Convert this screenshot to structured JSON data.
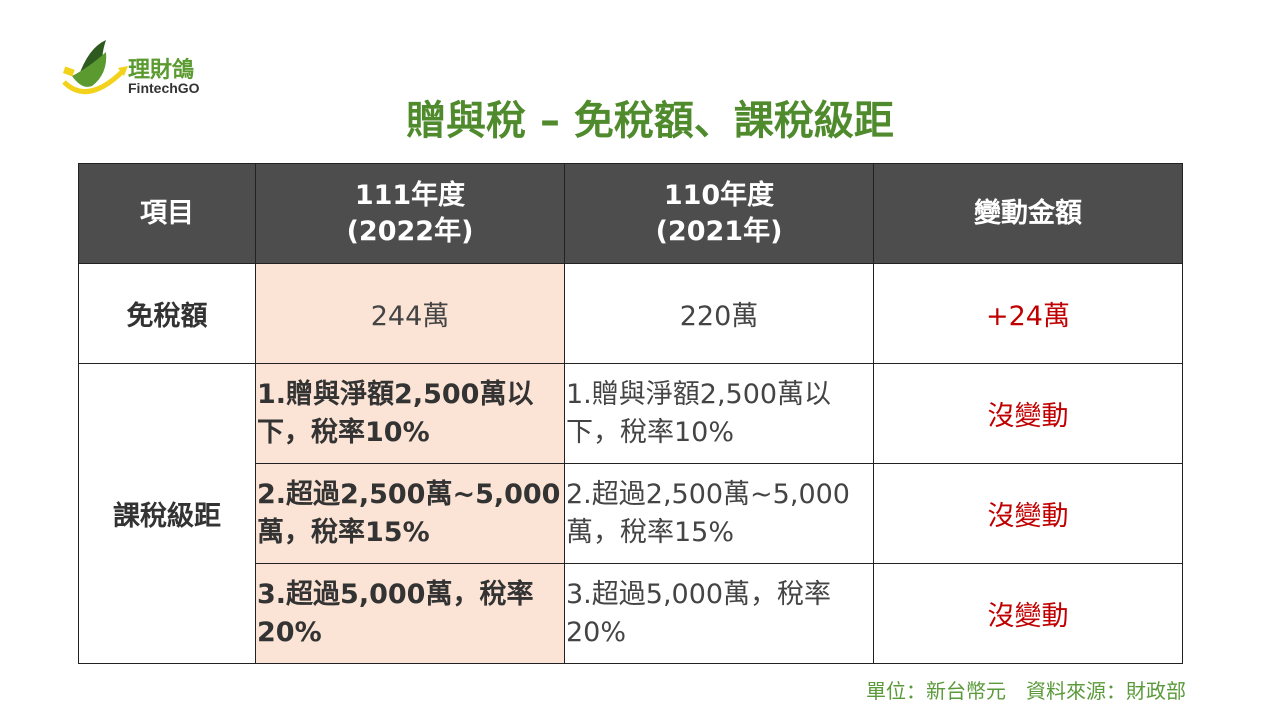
{
  "logo": {
    "name_cn": "理財鴿",
    "name_en": "FintechGO"
  },
  "title": "贈與稅 – 免稅額、課稅級距",
  "table": {
    "headers": [
      "項目",
      "111年度\n(2022年)",
      "110年度\n(2021年)",
      "變動金額"
    ],
    "headers_lines": [
      [
        "項目"
      ],
      [
        "111年度",
        "(2022年)"
      ],
      [
        "110年度",
        "(2021年)"
      ],
      [
        "變動金額"
      ]
    ],
    "exemption": {
      "label": "免稅額",
      "y2022": "244萬",
      "y2021": "220萬",
      "change": "+24萬"
    },
    "brackets": {
      "label": "課稅級距",
      "rows": [
        {
          "y2022": "1.贈與淨額2,500萬以下，稅率10%",
          "y2021": "1.贈與淨額2,500萬以下，稅率10%",
          "change": "沒變動"
        },
        {
          "y2022": "2.超過2,500萬~5,000萬，稅率15%",
          "y2021": "2.超過2,500萬~5,000萬，稅率15%",
          "change": "沒變動"
        },
        {
          "y2022": "3.超過5,000萬，稅率20%",
          "y2021": "3.超過5,000萬，稅率20%",
          "change": "沒變動"
        }
      ]
    }
  },
  "footer": "單位：新台幣元　資料來源：財政部",
  "colors": {
    "green": "#4f8a2c",
    "header": "#4d4d4d",
    "highlight": "#fbe4d6",
    "red": "#c00000"
  }
}
